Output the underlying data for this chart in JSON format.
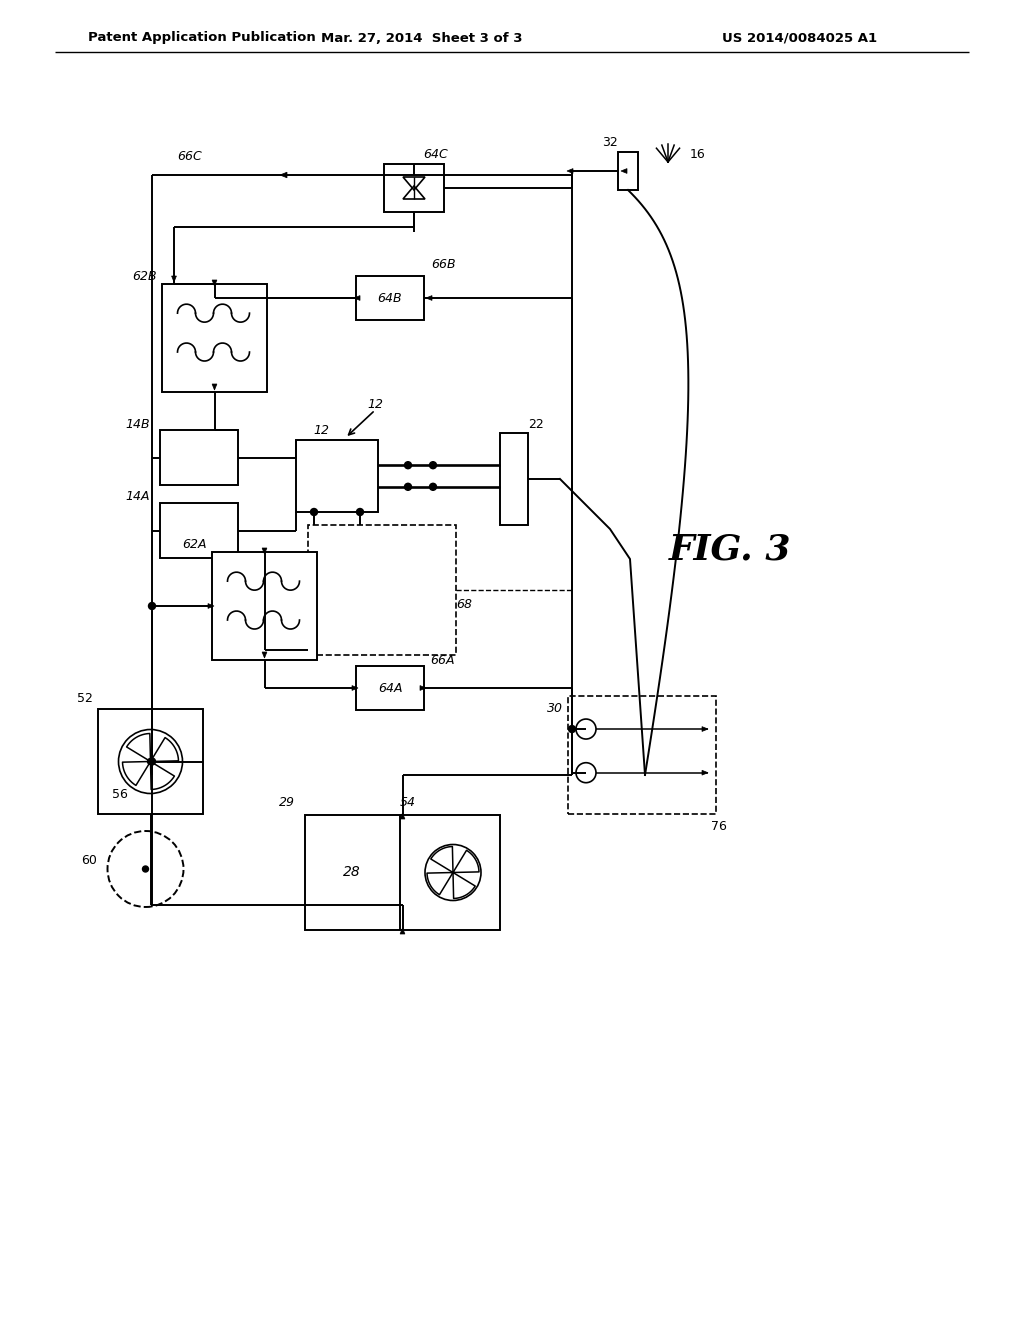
{
  "bg_color": "#ffffff",
  "lc": "#000000",
  "header_left": "Patent Application Publication",
  "header_mid": "Mar. 27, 2014  Sheet 3 of 3",
  "header_right": "US 2014/0084025 A1",
  "fig_label": "FIG. 3",
  "lw": 1.4
}
